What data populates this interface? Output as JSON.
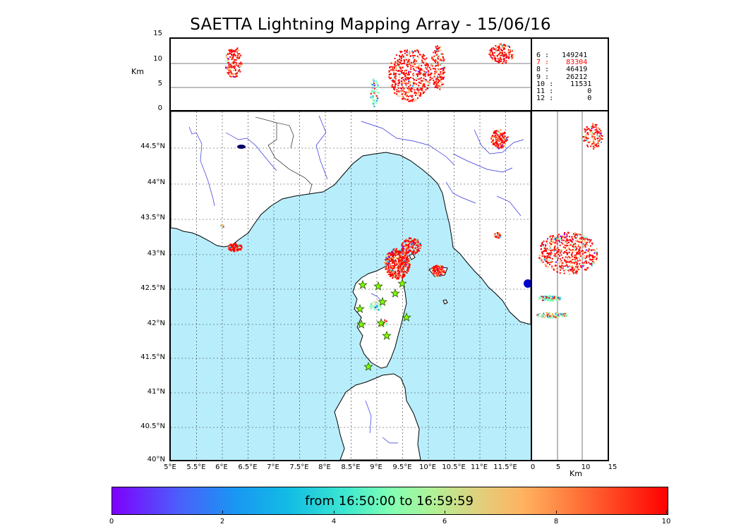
{
  "title": "SAETTA Lightning Mapping Array - 15/06/16",
  "top_panel": {
    "unit_label": "Km",
    "y_ticks": [
      "15",
      "10",
      "5",
      "0"
    ]
  },
  "right_panel": {
    "unit_label": "Km",
    "x_ticks": [
      "0",
      "5",
      "10",
      "15"
    ]
  },
  "map": {
    "lat_labels": [
      "44.5°N",
      "44°N",
      "43.5°N",
      "43°N",
      "42.5°N",
      "42°N",
      "41.5°N",
      "41°N",
      "40.5°N",
      "40°N"
    ],
    "lon_labels": [
      "5°E",
      "5.5°E",
      "6°E",
      "6.5°E",
      "7°E",
      "7.5°E",
      "8°E",
      "8.5°E",
      "9°E",
      "9.5°E",
      "10°E",
      "10.5°E",
      "11°E",
      "11.5°E"
    ],
    "sea_color": "#b8eefc",
    "land_color": "#ffffff",
    "river_color": "#3030e0",
    "station_color": "#7fff00"
  },
  "legend": {
    "rows": [
      {
        "key": "6",
        "value": "149241",
        "color": "#000000"
      },
      {
        "key": "7",
        "value": "83304",
        "color": "#ff0000"
      },
      {
        "key": "8",
        "value": "46419",
        "color": "#000000"
      },
      {
        "key": "9",
        "value": "26212",
        "color": "#000000"
      },
      {
        "key": "10",
        "value": "11531",
        "color": "#000000"
      },
      {
        "key": "11",
        "value": "0",
        "color": "#000000"
      },
      {
        "key": "12",
        "value": "0",
        "color": "#000000"
      }
    ]
  },
  "colorbar": {
    "text": "from 16:50:00 to 16:59:59",
    "ticks": [
      "0",
      "2",
      "4",
      "6",
      "8",
      "10"
    ],
    "colors": [
      "#7f00ff",
      "#1996f3",
      "#80ffb4",
      "#ffb260",
      "#ff0000"
    ]
  }
}
